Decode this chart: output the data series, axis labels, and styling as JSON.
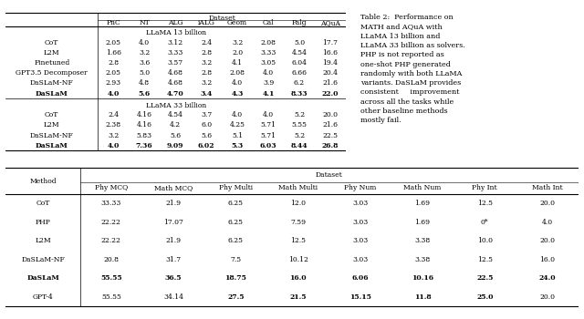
{
  "caption_title": "Table 2:",
  "caption_text": "Performance on MATH and AQuA with LLaMA 13 billion and LLaMA 33 billion as solvers. PHP is not reported as one-shot PHP generated randomly with both LLaMA variants. DaSLaM provides consistent improvement across all the tasks while other baseline methods mostly fail.",
  "table1": {
    "col_header_top": "Dataset",
    "col_header": [
      "PnC",
      "NT",
      "ALG",
      "iALG",
      "Geom",
      "Cal",
      "Palg",
      "AQuA"
    ],
    "section1_label": "LLaMA 13 billion",
    "section1_rows": [
      [
        "CoT",
        "2.05",
        "4.0",
        "3.12",
        "2.4",
        "3.2",
        "2.08",
        "5.0",
        "17.7"
      ],
      [
        "L2M",
        "1.66",
        "3.2",
        "3.33",
        "2.8",
        "2.0",
        "3.33",
        "4.54",
        "16.6"
      ],
      [
        "Finetuned",
        "2.8",
        "3.6",
        "3.57",
        "3.2",
        "4.1",
        "3.05",
        "6.04",
        "19.4"
      ],
      [
        "GPT3.5 Decomposer",
        "2.05",
        "5.0",
        "4.68",
        "2.8",
        "2.08",
        "4.0",
        "6.66",
        "20.4"
      ],
      [
        "DaSLaM-NF",
        "2.93",
        "4.8",
        "4.68",
        "3.2",
        "4.0",
        "3.9",
        "6.2",
        "21.6"
      ],
      [
        "DaSLaM",
        "4.0",
        "5.6",
        "4.70",
        "3.4",
        "4.3",
        "4.1",
        "8.33",
        "22.0"
      ]
    ],
    "section1_bold_row": 5,
    "section2_label": "LLaMA 33 billion",
    "section2_rows": [
      [
        "CoT",
        "2.4",
        "4.16",
        "4.54",
        "3.7",
        "4.0",
        "4.0",
        "5.2",
        "20.0"
      ],
      [
        "L2M",
        "2.38",
        "4.16",
        "4.2",
        "6.0",
        "4.25",
        "5.71",
        "5.55",
        "21.6"
      ],
      [
        "DaSLaM-NF",
        "3.2",
        "5.83",
        "5.6",
        "5.6",
        "5.1",
        "5.71",
        "5.2",
        "22.5"
      ],
      [
        "DaSLaM",
        "4.0",
        "7.36",
        "9.09",
        "6.02",
        "5.3",
        "6.03",
        "8.44",
        "26.8"
      ]
    ],
    "section2_bold_row": 3
  },
  "table2": {
    "col_header_top": "Dataset",
    "col_header": [
      "Phy MCQ",
      "Math MCQ",
      "Phy Multi",
      "Math Multi",
      "Phy Num",
      "Math Num",
      "Phy Int",
      "Math Int"
    ],
    "rows": [
      [
        "CoT",
        "33.33",
        "21.9",
        "6.25",
        "12.0",
        "3.03",
        "1.69",
        "12.5",
        "20.0"
      ],
      [
        "PHP",
        "22.22",
        "17.07",
        "6.25",
        "7.59",
        "3.03",
        "1.69",
        "0*",
        "4.0"
      ],
      [
        "L2M",
        "22.22",
        "21.9",
        "6.25",
        "12.5",
        "3.03",
        "3.38",
        "10.0",
        "20.0"
      ],
      [
        "DaSLaM-NF",
        "20.8",
        "31.7",
        "7.5",
        "10.12",
        "3.03",
        "3.38",
        "12.5",
        "16.0"
      ],
      [
        "DaSLaM",
        "55.55",
        "36.5",
        "18.75",
        "16.0",
        "6.06",
        "10.16",
        "22.5",
        "24.0"
      ],
      [
        "GPT-4",
        "55.55",
        "34.14",
        "27.5",
        "21.5",
        "15.15",
        "11.8",
        "25.0",
        "20.0"
      ]
    ],
    "dasLaM_bold_row": 4,
    "gpt4_bold_cols": [
      2,
      3,
      4,
      5,
      6
    ]
  },
  "bg_color": "#ffffff",
  "font_family": "serif"
}
